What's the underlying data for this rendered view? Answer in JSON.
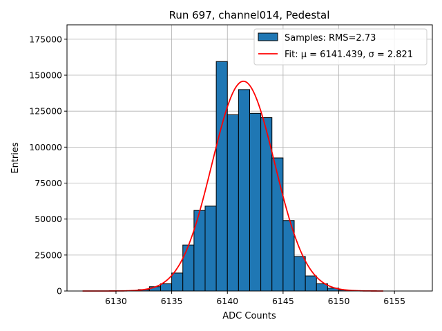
{
  "chart_data": {
    "type": "bar",
    "title": "Run 697, channel014, Pedestal",
    "xlabel": "ADC Counts",
    "ylabel": "Entries",
    "xlim": [
      6125.6,
      6158.4
    ],
    "ylim": [
      0,
      185000
    ],
    "xticks": [
      6130,
      6135,
      6140,
      6145,
      6150,
      6155
    ],
    "yticks": [
      0,
      25000,
      50000,
      75000,
      100000,
      125000,
      150000,
      175000
    ],
    "grid": true,
    "legend_position": "top-right",
    "bar_color": "#1f77b4",
    "fit_color": "#ff0000",
    "histogram": {
      "name": "Samples: RMS=2.73",
      "bin_width": 1,
      "bin_edges_start": 6131,
      "values": [
        0,
        1000,
        3000,
        5000,
        12500,
        32000,
        56000,
        59000,
        159500,
        122500,
        140000,
        123500,
        120500,
        92500,
        49000,
        24000,
        10500,
        5000,
        2000,
        700
      ]
    },
    "fit": {
      "name": "Fit: μ = 6141.439, σ = 2.821",
      "mu": 6141.439,
      "sigma": 2.821,
      "amplitude": 145800,
      "x_range": [
        6127,
        6154
      ]
    }
  }
}
